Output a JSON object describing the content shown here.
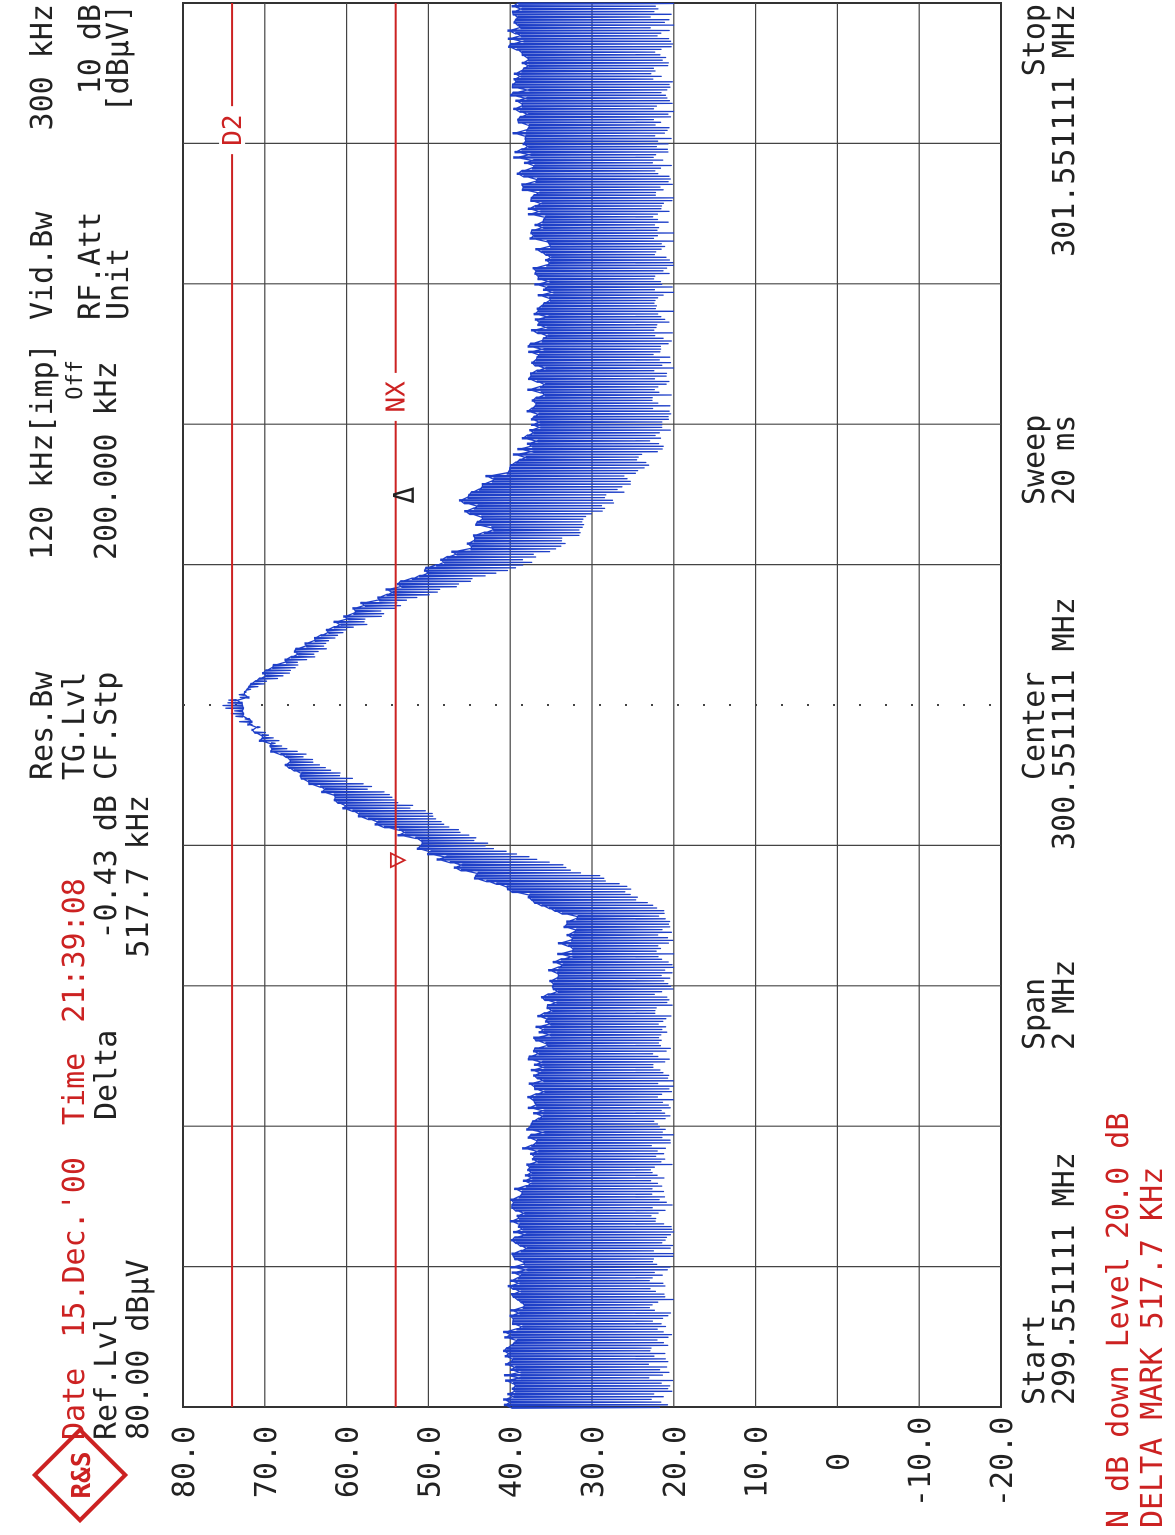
{
  "header": {
    "date_label": "Date",
    "date": "15.Dec.'00",
    "time_label": "Time",
    "time": "21:39:08",
    "ref_lvl_label": "Ref.Lvl",
    "ref_lvl": "80.00 dBµV",
    "marker_mode": "Delta",
    "delta_db": "-0.43 dB",
    "delta_freq": "517.7 kHz",
    "res_bw_label": "Res.Bw",
    "res_bw": "120 kHz[imp]",
    "tg_lvl_label": "TG.Lvl",
    "tg_lvl": "Off",
    "cf_stp_label": "CF.Stp",
    "cf_stp": "200.000 kHz",
    "vid_bw_label": "Vid.Bw",
    "vid_bw": "300 kHz",
    "rf_att_label": "RF.Att",
    "rf_att": "10 dB",
    "unit_label": "Unit",
    "unit": "[dBµV]"
  },
  "footer": {
    "start_label": "Start",
    "start": "299.551111 MHz",
    "span_label": "Span",
    "span": "2 MHz",
    "center_label": "Center",
    "center": "300.551111 MHz",
    "sweep_label": "Sweep",
    "sweep": "20 ms",
    "stop_label": "Stop",
    "stop": "301.551111 MHz",
    "ndb_line": "N dB down Level 20.0 dB",
    "delta_mark_line": "DELTA MARK 517.7 KHz"
  },
  "chart_data": {
    "type": "line",
    "orientation": "rotated 90° (frequency runs top-to-bottom of page, amplitude right-to-left)",
    "y_axis_unit": "dBµV",
    "ylim": [
      -20,
      80
    ],
    "y_ticks": [
      "80.0",
      "70.0",
      "60.0",
      "50.0",
      "40.0",
      "30.0",
      "20.0",
      "10.0",
      "0",
      "-10.0",
      "-20.0"
    ],
    "xlim_mhz": [
      299.551111,
      301.551111
    ],
    "grid": true,
    "center_line_dotted": true,
    "reference_lines": [
      {
        "label": "D2",
        "value": 74
      },
      {
        "label": "NX",
        "value": 54
      }
    ],
    "markers": [
      {
        "label": "▽",
        "x_mhz": 300.33,
        "y": 54
      },
      {
        "label": "Δ",
        "x_mhz": 300.85,
        "y": 53
      }
    ],
    "series": [
      {
        "x_mhz": [
          299.551,
          299.651,
          299.751,
          299.851,
          299.951,
          300.051,
          300.151,
          300.251,
          300.301,
          300.351,
          300.401,
          300.451,
          300.501,
          300.531,
          300.551,
          300.571,
          300.601,
          300.651,
          300.701,
          300.751,
          300.801,
          300.851,
          300.901,
          300.951,
          301.051,
          301.151,
          301.251,
          301.351,
          301.451,
          301.551
        ],
        "upper": [
          41,
          41,
          40,
          40,
          38,
          38,
          36,
          33,
          44,
          52,
          60,
          66,
          71,
          73,
          74,
          73,
          70,
          64,
          58,
          50,
          44,
          47,
          40,
          38,
          38,
          37,
          38,
          40,
          40,
          41
        ],
        "lower": [
          20,
          20,
          20,
          20,
          20,
          20,
          20,
          20,
          26,
          42,
          50,
          60,
          68,
          72,
          74,
          72,
          66,
          60,
          52,
          38,
          30,
          26,
          22,
          20,
          20,
          20,
          20,
          20,
          20,
          20
        ],
        "color": "#1e3fc8"
      }
    ]
  },
  "colors": {
    "trace": "#1e3fc8",
    "marker_red": "#cc2222",
    "grid": "#333333",
    "text": "#222222"
  },
  "logo": "R&S"
}
